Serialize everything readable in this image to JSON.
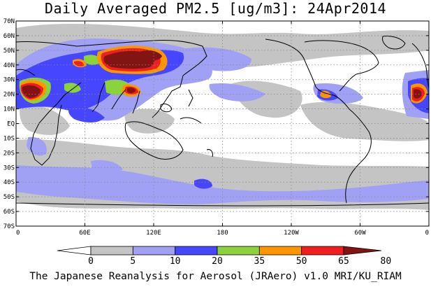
{
  "title": "Daily Averaged PM2.5 [ug/m3]: 24Apr2014",
  "footer": "The Japanese Reanalysis for Aerosol (JRAero) v1.0 MRI/KU_RIAM",
  "map": {
    "lon_range": [
      0,
      360
    ],
    "lat_range": [
      -70,
      70
    ],
    "grid": true,
    "lat_ticks": [
      {
        "v": 70,
        "label": "70N"
      },
      {
        "v": 60,
        "label": "60N"
      },
      {
        "v": 50,
        "label": "50N"
      },
      {
        "v": 40,
        "label": "40N"
      },
      {
        "v": 30,
        "label": "30N"
      },
      {
        "v": 20,
        "label": "20N"
      },
      {
        "v": 10,
        "label": "10N"
      },
      {
        "v": 0,
        "label": "EQ"
      },
      {
        "v": -10,
        "label": "10S"
      },
      {
        "v": -20,
        "label": "20S"
      },
      {
        "v": -30,
        "label": "30S"
      },
      {
        "v": -40,
        "label": "40S"
      },
      {
        "v": -50,
        "label": "50S"
      },
      {
        "v": -60,
        "label": "60S"
      },
      {
        "v": -70,
        "label": "70S"
      }
    ],
    "lon_ticks": [
      {
        "v": 0,
        "label": "0"
      },
      {
        "v": 60,
        "label": "60E"
      },
      {
        "v": 120,
        "label": "120E"
      },
      {
        "v": 180,
        "label": "180"
      },
      {
        "v": 240,
        "label": "120W"
      },
      {
        "v": 300,
        "label": "60W"
      },
      {
        "v": 360,
        "label": "0"
      }
    ]
  },
  "colorbar": {
    "levels": [
      "0",
      "5",
      "10",
      "20",
      "35",
      "50",
      "65",
      "80"
    ],
    "colors": [
      "#ffffff",
      "#c4c4c4",
      "#a0a0f5",
      "#4646ff",
      "#8cd23c",
      "#ff9600",
      "#f01e1e",
      "#821414"
    ]
  }
}
